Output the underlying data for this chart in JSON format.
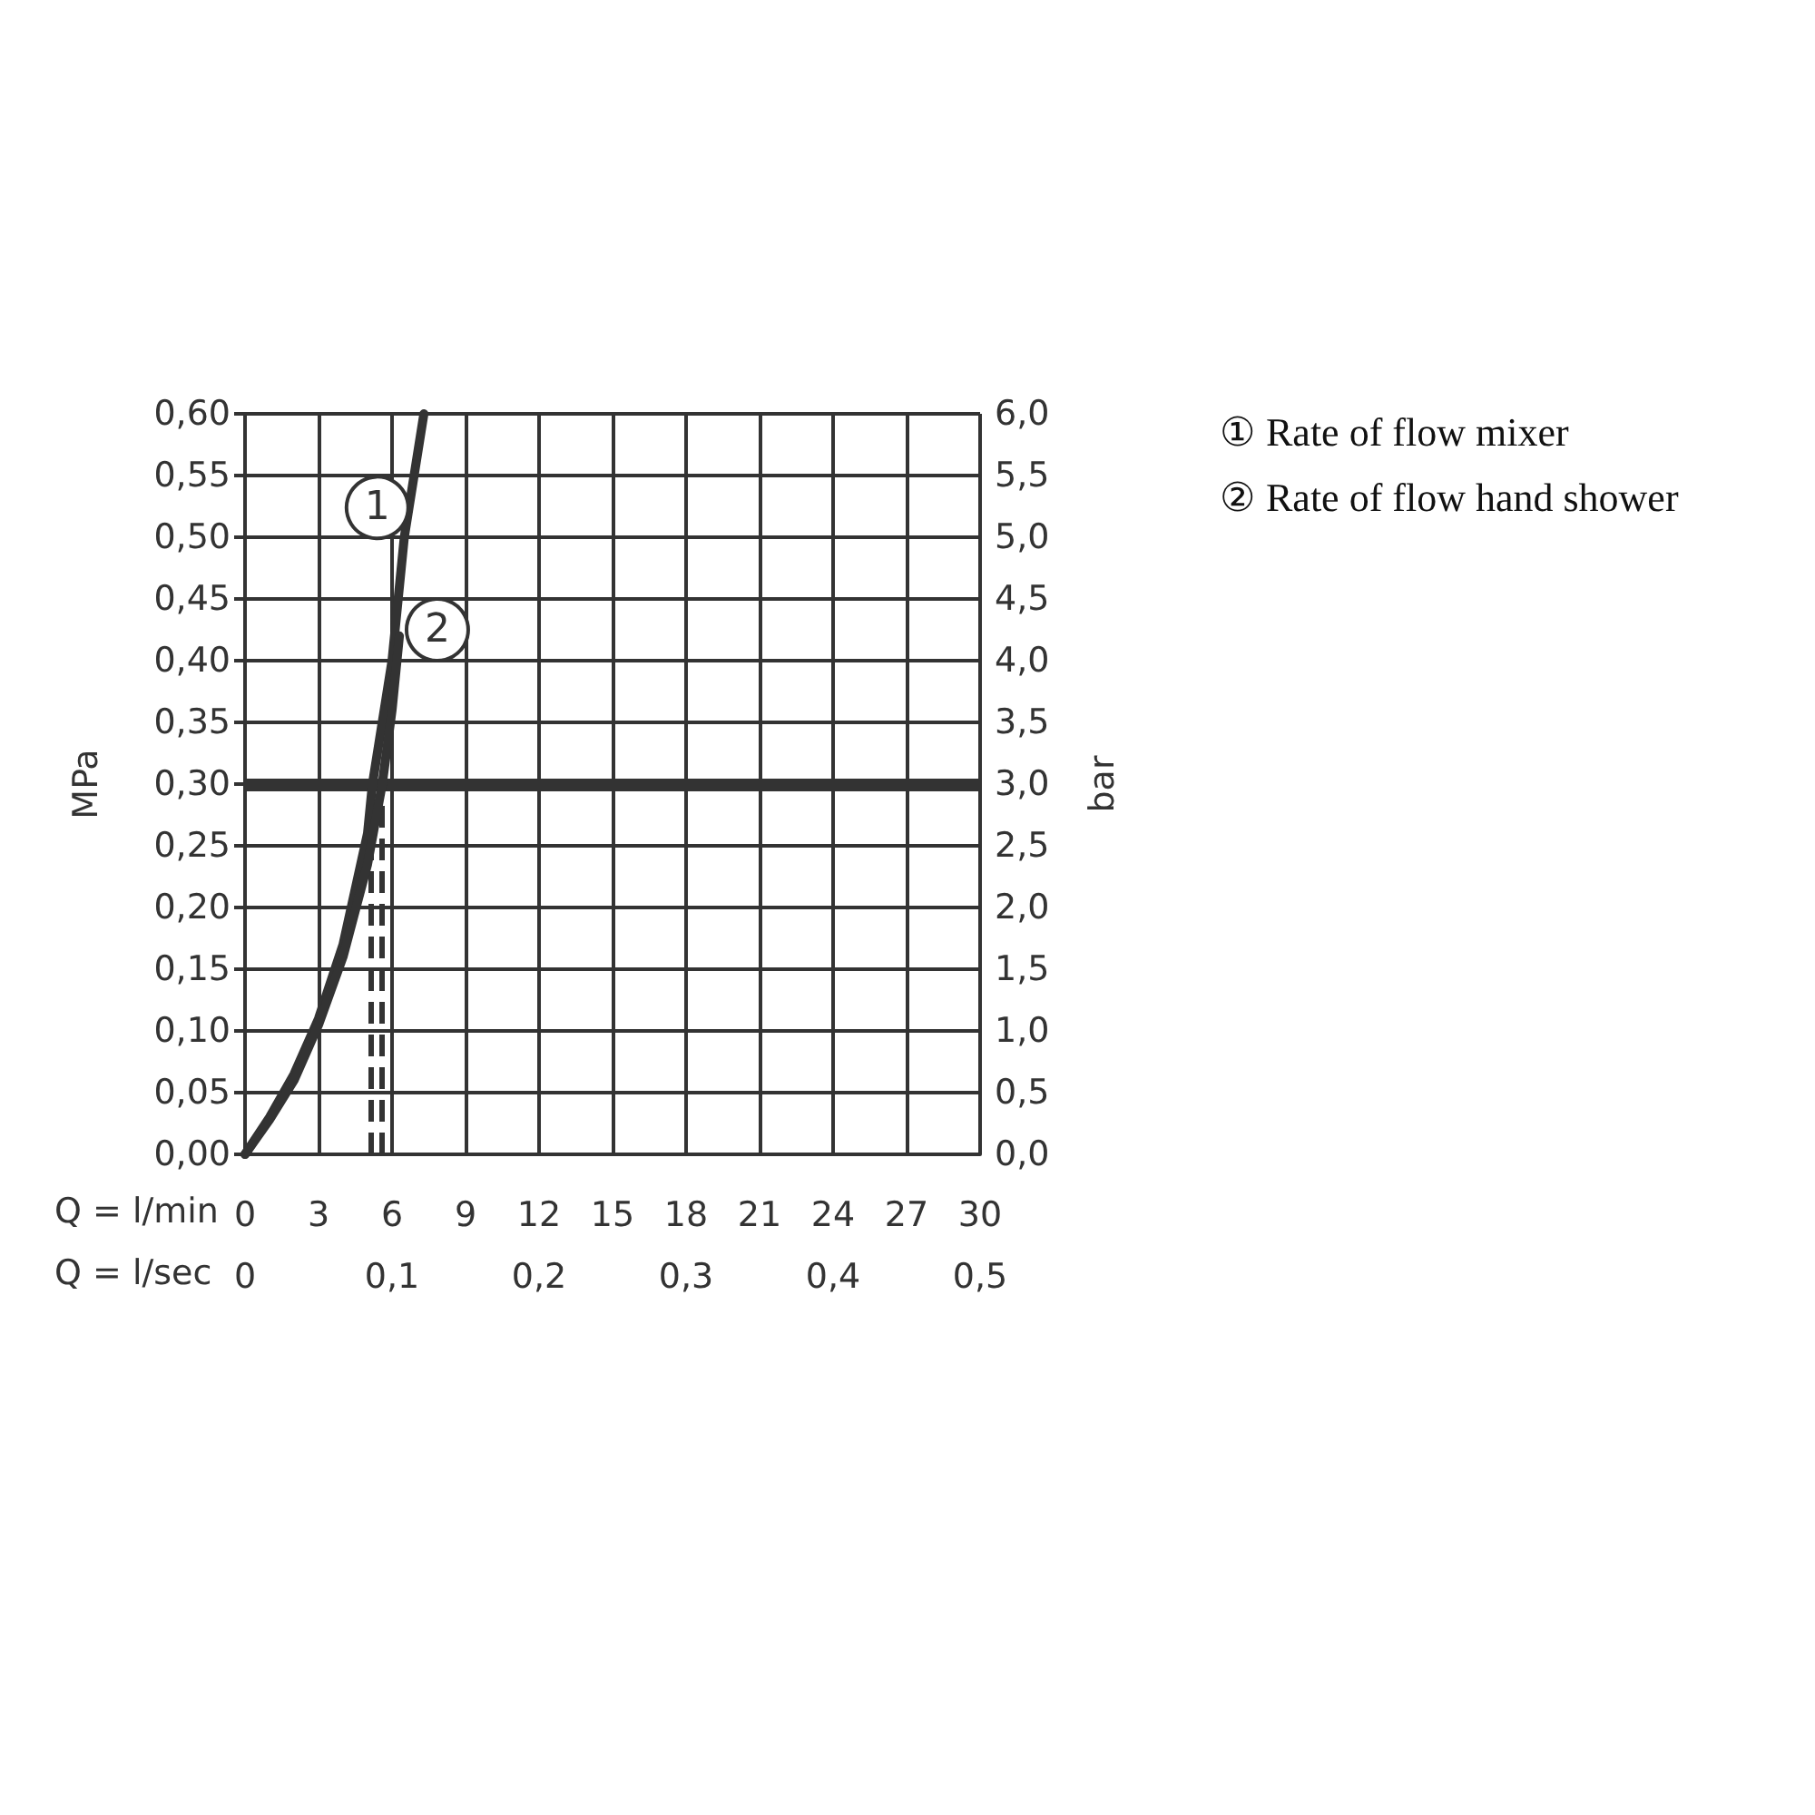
{
  "chart_data": {
    "type": "line",
    "xlabel": "Q = l/min",
    "x2label": "Q = l/sec",
    "ylabel": "MPa",
    "y2label": "bar",
    "xlim": [
      0,
      30
    ],
    "xticks": [
      0,
      3,
      6,
      9,
      12,
      15,
      18,
      21,
      24,
      27,
      30
    ],
    "x2lim": [
      0,
      0.5
    ],
    "x2ticks": [
      0,
      {
        "value": 0.1,
        "label": "0,1"
      },
      {
        "value": 0.2,
        "label": "0,2"
      },
      {
        "value": 0.3,
        "label": "0,3"
      },
      {
        "value": 0.4,
        "label": "0,4"
      },
      {
        "value": 0.5,
        "label": "0,5"
      }
    ],
    "ylim": [
      0,
      0.6
    ],
    "yticks": [
      {
        "value": 0,
        "label": "0,00"
      },
      {
        "value": 0.05,
        "label": "0,05"
      },
      {
        "value": 0.1,
        "label": "0,10"
      },
      {
        "value": 0.15,
        "label": "0,15"
      },
      {
        "value": 0.2,
        "label": "0,20"
      },
      {
        "value": 0.25,
        "label": "0,25"
      },
      {
        "value": 0.3,
        "label": "0,30"
      },
      {
        "value": 0.35,
        "label": "0,35"
      },
      {
        "value": 0.4,
        "label": "0,40"
      },
      {
        "value": 0.45,
        "label": "0,45"
      },
      {
        "value": 0.5,
        "label": "0,50"
      },
      {
        "value": 0.55,
        "label": "0,55"
      },
      {
        "value": 0.6,
        "label": "0,60"
      }
    ],
    "y2lim": [
      0,
      6
    ],
    "y2ticks": [
      {
        "value": 0,
        "label": "0,0"
      },
      {
        "value": 0.5,
        "label": "0,5"
      },
      {
        "value": 1,
        "label": "1,0"
      },
      {
        "value": 1.5,
        "label": "1,5"
      },
      {
        "value": 2,
        "label": "2,0"
      },
      {
        "value": 2.5,
        "label": "2,5"
      },
      {
        "value": 3,
        "label": "3,0"
      },
      {
        "value": 3.5,
        "label": "3,5"
      },
      {
        "value": 4,
        "label": "4,0"
      },
      {
        "value": 4.5,
        "label": "4,5"
      },
      {
        "value": 5,
        "label": "5,0"
      },
      {
        "value": 5.5,
        "label": "5,5"
      },
      {
        "value": 6,
        "label": "6,0"
      }
    ],
    "grid": true,
    "legend": "top right",
    "marker": "none",
    "line_style": "solid",
    "series": [
      {
        "name": "① Rate of flow mixer",
        "color": "#333333",
        "x": [
          0,
          1,
          2,
          3,
          4,
          5,
          5.2,
          6,
          6.5,
          7.3
        ],
        "values": [
          0,
          0.03,
          0.065,
          0.11,
          0.17,
          0.26,
          0.3,
          0.4,
          0.5,
          0.6
        ]
      },
      {
        "name": "② Rate of flow hand shower",
        "color": "#333333",
        "x": [
          0,
          1,
          2,
          3,
          4,
          5,
          5.6,
          6,
          6.3
        ],
        "values": [
          0,
          0.028,
          0.06,
          0.105,
          0.16,
          0.235,
          0.3,
          0.36,
          0.42
        ]
      }
    ],
    "ref_lines": [
      {
        "axis": "y",
        "value": 0.3,
        "color": "#333333",
        "line_style": "solid"
      },
      {
        "axis": "x",
        "value": 5.1,
        "color": "#333333",
        "line_style": "dashed"
      },
      {
        "axis": "x",
        "value": 5.6,
        "color": "#333333",
        "line_style": "dashed"
      }
    ],
    "annotations": [
      {
        "text": "1",
        "x": 5.4,
        "y": 0.524
      },
      {
        "text": "2",
        "x": 7.85,
        "y": 0.425
      }
    ]
  }
}
